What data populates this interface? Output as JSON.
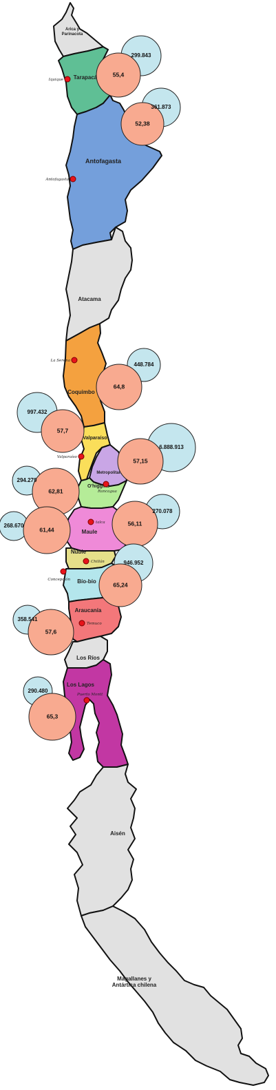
{
  "regions": [
    {
      "key": "arica",
      "name_lines": [
        "Arica y",
        "Parinacota"
      ],
      "color": "#e1e1e1"
    },
    {
      "key": "tarapaca",
      "name_lines": [
        "Tarapacá"
      ],
      "color": "#5fbf95"
    },
    {
      "key": "antofagasta",
      "name_lines": [
        "Antofagasta"
      ],
      "color": "#749fdb"
    },
    {
      "key": "atacama",
      "name_lines": [
        "Atacama"
      ],
      "color": "#e1e1e1"
    },
    {
      "key": "coquimbo",
      "name_lines": [
        "Coquimbo"
      ],
      "color": "#f4a13f"
    },
    {
      "key": "valparaiso",
      "name_lines": [
        "Valparaíso"
      ],
      "color": "#fade5a"
    },
    {
      "key": "metropolitana",
      "name_lines": [
        "Metropolitana"
      ],
      "color": "#c9a6e6"
    },
    {
      "key": "ohiggins",
      "name_lines": [
        "O'higgins"
      ],
      "color": "#b5ec98"
    },
    {
      "key": "maule",
      "name_lines": [
        "Maule"
      ],
      "color": "#ef8ad8"
    },
    {
      "key": "nuble",
      "name_lines": [
        "Ñuble"
      ],
      "color": "#e6e08a"
    },
    {
      "key": "biobio",
      "name_lines": [
        "Bío-bío"
      ],
      "color": "#b4e6ec"
    },
    {
      "key": "araucania",
      "name_lines": [
        "Araucanía"
      ],
      "color": "#f3777a"
    },
    {
      "key": "losrios",
      "name_lines": [
        "Los Ríos"
      ],
      "color": "#e1e1e1"
    },
    {
      "key": "loslagos",
      "name_lines": [
        "Los Lagos"
      ],
      "color": "#c237a3"
    },
    {
      "key": "aisen",
      "name_lines": [
        "Aisén"
      ],
      "color": "#e1e1e1"
    },
    {
      "key": "magallanes",
      "name_lines": [
        "Magallanes y",
        "Antártica chilena"
      ],
      "color": "#e1e1e1"
    }
  ],
  "cities": [
    {
      "key": "iquique",
      "name": "Iquique"
    },
    {
      "key": "antofagasta",
      "name": "Antofagasta"
    },
    {
      "key": "laserena",
      "name": "La Serena"
    },
    {
      "key": "valparaiso",
      "name": "Valparaíso"
    },
    {
      "key": "rancagua",
      "name": "Rancagua"
    },
    {
      "key": "talca",
      "name": "talca"
    },
    {
      "key": "chillan",
      "name": "Chillán"
    },
    {
      "key": "concepcion",
      "name": "Concepción"
    },
    {
      "key": "temuco",
      "name": "Temuco"
    },
    {
      "key": "puertomontt",
      "name": "Puerto Montt"
    }
  ],
  "bubbles": [
    {
      "region": "tarapaca",
      "population": "299.843",
      "value": "55,4"
    },
    {
      "region": "antofagasta",
      "population": "361.873",
      "value": "52,38"
    },
    {
      "region": "coquimbo",
      "population": "448.784",
      "value": "64,8"
    },
    {
      "region": "valparaiso",
      "population": "997.432",
      "value": "57,7"
    },
    {
      "region": "metropolitana",
      "population": "6.888.913",
      "value": "57,15"
    },
    {
      "region": "ohiggins",
      "population": "294.279",
      "value": "62,81"
    },
    {
      "region": "maule",
      "population": "270.078",
      "value": "56,11"
    },
    {
      "region": "nuble",
      "population": "268.670",
      "value": "61,44"
    },
    {
      "region": "biobio",
      "population": "946.952",
      "value": "65,24"
    },
    {
      "region": "araucania",
      "population": "358.541",
      "value": "57,6"
    },
    {
      "region": "loslagos",
      "population": "290.480",
      "value": "65,3"
    }
  ]
}
